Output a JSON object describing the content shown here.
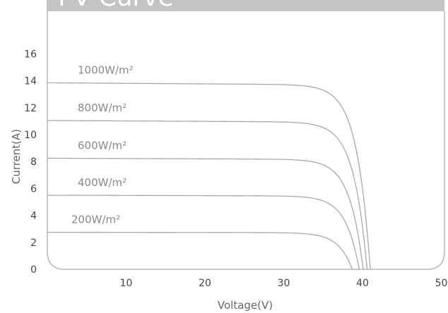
{
  "chart_data": {
    "type": "line",
    "title": "I-V Curve",
    "xlabel": "Voltage(V)",
    "ylabel": "Current(A)",
    "xlim": [
      0,
      50
    ],
    "ylim": [
      0,
      16
    ],
    "x_ticks": [
      "10",
      "20",
      "30",
      "40",
      "50"
    ],
    "y_ticks": [
      "0",
      "2",
      "4",
      "6",
      "8",
      "10",
      "12",
      "14",
      "16"
    ],
    "grid": false,
    "series": [
      {
        "name": "1000W/m²",
        "isc": 13.85,
        "voc": 41.0,
        "values": [
          [
            0,
            13.85
          ],
          [
            10,
            13.8
          ],
          [
            20,
            13.75
          ],
          [
            30,
            13.5
          ],
          [
            35,
            12.0
          ],
          [
            39,
            6.0
          ],
          [
            41.0,
            0
          ]
        ]
      },
      {
        "name": "800W/m²",
        "isc": 11.05,
        "voc": 40.6,
        "values": [
          [
            0,
            11.05
          ],
          [
            10,
            11.0
          ],
          [
            20,
            10.95
          ],
          [
            30,
            10.8
          ],
          [
            35,
            9.6
          ],
          [
            38.5,
            5.0
          ],
          [
            40.6,
            0
          ]
        ]
      },
      {
        "name": "600W/m²",
        "isc": 8.25,
        "voc": 40.1,
        "values": [
          [
            0,
            8.25
          ],
          [
            10,
            8.2
          ],
          [
            20,
            8.15
          ],
          [
            30,
            8.05
          ],
          [
            35,
            7.2
          ],
          [
            38,
            4.0
          ],
          [
            40.1,
            0
          ]
        ]
      },
      {
        "name": "400W/m²",
        "isc": 5.5,
        "voc": 39.6,
        "values": [
          [
            0,
            5.5
          ],
          [
            10,
            5.47
          ],
          [
            20,
            5.45
          ],
          [
            30,
            5.35
          ],
          [
            35,
            4.8
          ],
          [
            37.5,
            2.8
          ],
          [
            39.6,
            0
          ]
        ]
      },
      {
        "name": "200W/m²",
        "isc": 2.75,
        "voc": 38.7,
        "values": [
          [
            0,
            2.75
          ],
          [
            10,
            2.73
          ],
          [
            20,
            2.72
          ],
          [
            30,
            2.67
          ],
          [
            35,
            2.35
          ],
          [
            37,
            1.4
          ],
          [
            38.7,
            0
          ]
        ]
      }
    ]
  },
  "colors": {
    "curve": "#a8a8a8",
    "title_bar": "#c4c4c4",
    "frame": "#b8b8b8"
  }
}
